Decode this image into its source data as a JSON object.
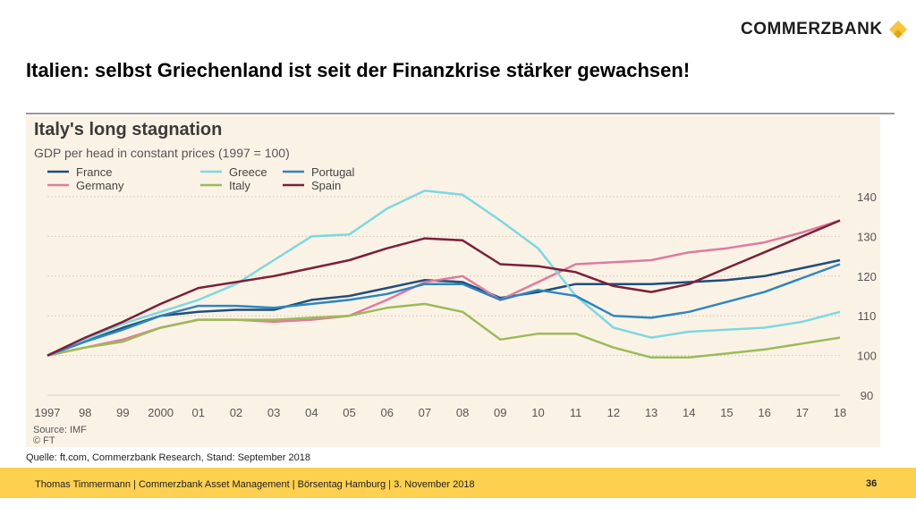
{
  "header": {
    "brand": "COMMERZBANK",
    "title": "Italien: selbst Griechenland ist seit der Finanzkrise stärker gewachsen!"
  },
  "chart_data": {
    "type": "line",
    "title": "Italy's long stagnation",
    "subtitle": "GDP per head in constant prices (1997 = 100)",
    "x": [
      "1997",
      "98",
      "99",
      "2000",
      "01",
      "02",
      "03",
      "04",
      "05",
      "06",
      "07",
      "08",
      "09",
      "10",
      "11",
      "12",
      "13",
      "14",
      "15",
      "16",
      "17",
      "18"
    ],
    "ylim": [
      90,
      140
    ],
    "yticks": [
      90,
      100,
      110,
      120,
      130,
      140
    ],
    "legend_position": "top-left",
    "grid": true,
    "series": [
      {
        "name": "France",
        "color": "#1f4e79",
        "values": [
          100,
          103.5,
          107,
          110,
          111,
          111.5,
          111.5,
          114,
          115,
          117,
          119,
          118.5,
          114.5,
          116,
          118,
          118,
          118,
          118.5,
          119,
          120,
          122,
          124
        ]
      },
      {
        "name": "Germany",
        "color": "#e07a9e",
        "values": [
          100,
          102,
          104,
          107,
          109,
          109,
          108.5,
          109,
          110,
          114,
          118.5,
          120,
          114,
          118.5,
          123,
          123.5,
          124,
          126,
          127,
          128.5,
          131,
          134
        ]
      },
      {
        "name": "Greece",
        "color": "#7dd8e0",
        "values": [
          100,
          104,
          108,
          111,
          114,
          118,
          124,
          130,
          130.5,
          137,
          141.5,
          140.5,
          134,
          127,
          115,
          107,
          104.5,
          106,
          106.5,
          107,
          108.5,
          111
        ]
      },
      {
        "name": "Italy",
        "color": "#9bbb59",
        "values": [
          100,
          102,
          103.5,
          107,
          109,
          109,
          109,
          109.5,
          110,
          112,
          113,
          111,
          104,
          105.5,
          105.5,
          102,
          99.5,
          99.5,
          100.5,
          101.5,
          103,
          104.5
        ]
      },
      {
        "name": "Portugal",
        "color": "#2e86c1",
        "values": [
          100,
          103.5,
          106.5,
          110,
          112.5,
          112.5,
          112,
          113,
          114,
          115.5,
          118,
          118,
          114,
          116.5,
          115,
          110,
          109.5,
          111,
          113.5,
          116,
          119.5,
          123
        ]
      },
      {
        "name": "Spain",
        "color": "#7b1f3a",
        "values": [
          100,
          104.5,
          108.5,
          113,
          117,
          118.5,
          120,
          122,
          124,
          127,
          129.5,
          129,
          123,
          122.5,
          121,
          117.5,
          116,
          118,
          122,
          126,
          130,
          134
        ]
      }
    ],
    "source_lines": [
      "Source: IMF",
      "© FT"
    ]
  },
  "source_note": "Quelle: ft.com, Commerzbank Research, Stand: September 2018",
  "footer": {
    "text": "Thomas Timmermann | Commerzbank Asset Management | Börsentag Hamburg | 3. November 2018",
    "page_number": "36"
  }
}
